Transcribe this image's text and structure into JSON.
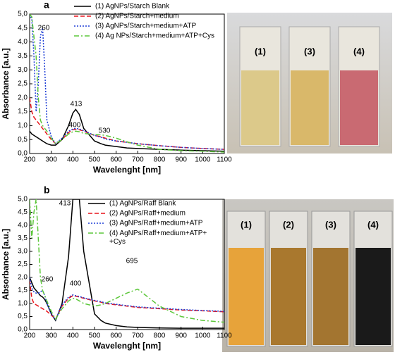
{
  "chart_data": [
    {
      "type": "line",
      "panel": "a",
      "xlabel": "Wavelenght [nm]",
      "ylabel": "Absorbance [a.u.]",
      "x": [
        200,
        210,
        220,
        230,
        240,
        250,
        260,
        270,
        280,
        300,
        320,
        350,
        380,
        400,
        413,
        430,
        450,
        500,
        530,
        550,
        600,
        650,
        700,
        800,
        900,
        1000,
        1100
      ],
      "xlim": [
        200,
        1100
      ],
      "xticks": [
        200,
        300,
        400,
        500,
        600,
        700,
        800,
        900,
        1000,
        1100
      ],
      "ylim": [
        0,
        5
      ],
      "yticks": [
        {
          "value": 0,
          "label": "0,0"
        },
        {
          "value": 0.5,
          "label": "0,5"
        },
        {
          "value": 1,
          "label": "1,0"
        },
        {
          "value": 1.5,
          "label": "1,5"
        },
        {
          "value": 2,
          "label": "2,0"
        },
        {
          "value": 2.5,
          "label": "2,5"
        },
        {
          "value": 3,
          "label": "3,0"
        },
        {
          "value": 3.5,
          "label": "3,5"
        },
        {
          "value": 4,
          "label": "4,0"
        },
        {
          "value": 4.5,
          "label": "4,5"
        },
        {
          "value": 5,
          "label": "5,0"
        }
      ],
      "series": [
        {
          "name": "(1) AgNPs/Starch Blank",
          "color": "#000000",
          "dash": "solid",
          "values": [
            0.8,
            0.7,
            0.65,
            0.6,
            0.55,
            0.5,
            0.45,
            0.4,
            0.35,
            0.3,
            0.3,
            0.5,
            1.0,
            1.45,
            1.58,
            1.4,
            0.9,
            0.45,
            0.35,
            0.3,
            0.25,
            0.2,
            0.18,
            0.15,
            0.12,
            0.1,
            0.08
          ]
        },
        {
          "name": "(2) AgNPs/Starch+medium",
          "color": "#e8141b",
          "dash": "dashed",
          "values": [
            2.0,
            1.5,
            1.3,
            1.2,
            1.1,
            1.0,
            0.9,
            0.8,
            0.7,
            0.5,
            0.35,
            0.5,
            0.75,
            0.85,
            0.87,
            0.85,
            0.8,
            0.65,
            0.6,
            0.55,
            0.45,
            0.4,
            0.35,
            0.28,
            0.22,
            0.18,
            0.15
          ]
        },
        {
          "name": "(3) AgNPs/Starch+medium+ATP",
          "color": "#1f3fd6",
          "dash": "dotted",
          "values": [
            5.0,
            4.8,
            3.5,
            1.5,
            2.5,
            4.2,
            4.5,
            3.0,
            1.2,
            0.6,
            0.35,
            0.55,
            0.8,
            0.88,
            0.9,
            0.88,
            0.82,
            0.65,
            0.58,
            0.52,
            0.45,
            0.4,
            0.35,
            0.28,
            0.22,
            0.18,
            0.15
          ]
        },
        {
          "name": "(4) Ag NPs/Starch+medium+ATP+Cys",
          "color": "#5cc73a",
          "dash": "dashdot",
          "values": [
            5.0,
            4.9,
            4.2,
            3.5,
            2.0,
            1.2,
            1.0,
            0.9,
            0.8,
            0.55,
            0.35,
            0.5,
            0.7,
            0.78,
            0.8,
            0.78,
            0.72,
            0.68,
            0.67,
            0.65,
            0.55,
            0.42,
            0.3,
            0.15,
            0.1,
            0.08,
            0.05
          ]
        }
      ],
      "annotations": [
        "260",
        "413",
        "400",
        "530"
      ]
    },
    {
      "type": "line",
      "panel": "b",
      "xlabel": "Wavelenght [nm]",
      "ylabel": "Absorbance [a.u.]",
      "x": [
        200,
        210,
        220,
        230,
        240,
        250,
        260,
        270,
        280,
        300,
        320,
        350,
        380,
        400,
        413,
        430,
        450,
        500,
        530,
        550,
        600,
        650,
        700,
        800,
        900,
        1000,
        1100
      ],
      "xlim": [
        200,
        1100
      ],
      "xticks": [
        200,
        300,
        400,
        500,
        600,
        700,
        800,
        900,
        1000,
        1100
      ],
      "ylim": [
        0,
        5
      ],
      "yticks": [
        {
          "value": 0,
          "label": "0,0"
        },
        {
          "value": 0.5,
          "label": "0,5"
        },
        {
          "value": 1,
          "label": "1,0"
        },
        {
          "value": 1.5,
          "label": "1,5"
        },
        {
          "value": 2,
          "label": "2,0"
        },
        {
          "value": 2.5,
          "label": "2,5"
        },
        {
          "value": 3,
          "label": "3,0"
        },
        {
          "value": 3.5,
          "label": "3,5"
        },
        {
          "value": 4,
          "label": "4,0"
        },
        {
          "value": 4.5,
          "label": "4,5"
        },
        {
          "value": 5,
          "label": "5,0"
        }
      ],
      "series": [
        {
          "name": "(1) AgNPs/Raff Blank",
          "color": "#000000",
          "dash": "solid",
          "values": [
            2.0,
            1.8,
            1.6,
            1.5,
            1.4,
            1.3,
            1.25,
            1.15,
            1.0,
            0.6,
            0.35,
            1.0,
            2.8,
            5.0,
            5.0,
            5.0,
            3.0,
            0.6,
            0.35,
            0.25,
            0.15,
            0.1,
            0.08,
            0.06,
            0.05,
            0.05,
            0.05
          ]
        },
        {
          "name": "(2) AgNPs/Raff+medium",
          "color": "#e8141b",
          "dash": "dashed",
          "values": [
            1.9,
            1.2,
            1.0,
            0.95,
            0.9,
            0.85,
            0.8,
            0.75,
            0.7,
            0.55,
            0.4,
            0.9,
            1.2,
            1.3,
            1.28,
            1.25,
            1.2,
            1.1,
            1.05,
            1.0,
            0.95,
            0.9,
            0.85,
            0.8,
            0.75,
            0.72,
            0.68
          ]
        },
        {
          "name": "(3) AgNPs/Raff+medium+ATP",
          "color": "#1f3fd6",
          "dash": "dotted",
          "values": [
            2.0,
            1.6,
            1.45,
            1.4,
            1.4,
            1.45,
            1.5,
            1.3,
            1.0,
            0.6,
            0.38,
            0.95,
            1.25,
            1.33,
            1.3,
            1.27,
            1.22,
            1.12,
            1.07,
            1.02,
            0.97,
            0.92,
            0.87,
            0.82,
            0.77,
            0.73,
            0.7
          ]
        },
        {
          "name": "(4) AgNPs/Raff+medium+ATP+\n+Cys",
          "color": "#5cc73a",
          "dash": "dashdot",
          "values": [
            5.0,
            3.5,
            4.5,
            5.0,
            3.5,
            2.0,
            1.5,
            1.3,
            1.1,
            0.7,
            0.4,
            0.8,
            1.1,
            1.2,
            1.18,
            1.1,
            1.0,
            0.9,
            0.95,
            1.0,
            1.2,
            1.4,
            1.55,
            0.9,
            0.5,
            0.35,
            0.28
          ]
        }
      ],
      "annotations": [
        "413",
        "260",
        "400",
        "695"
      ]
    }
  ],
  "photos": [
    {
      "labels": [
        "(1)",
        "(3)",
        "(4)"
      ]
    },
    {
      "labels": [
        "(1)",
        "(2)",
        "(3)",
        "(4)"
      ]
    }
  ]
}
